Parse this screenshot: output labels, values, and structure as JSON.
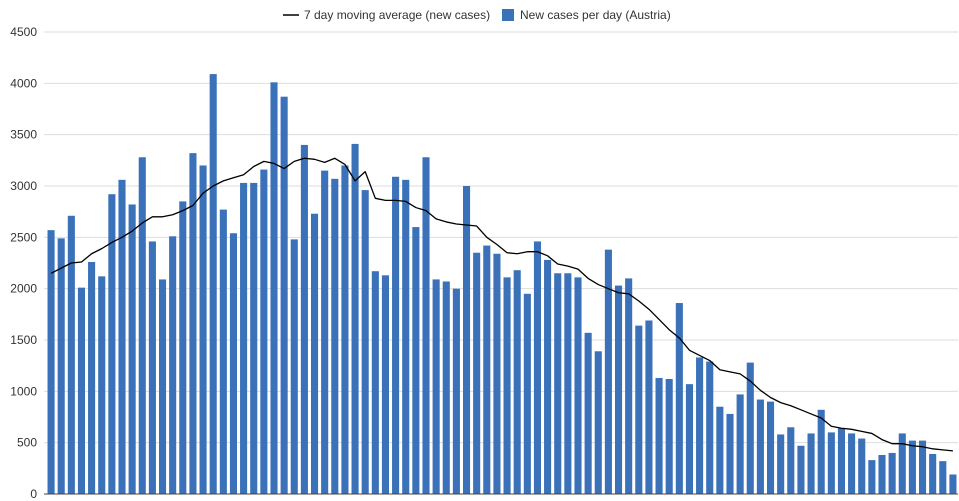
{
  "chart_data": {
    "type": "bar",
    "ylim": [
      0,
      4500
    ],
    "yticks": [
      "0",
      "500",
      "1000",
      "1500",
      "2000",
      "2500",
      "3000",
      "3500",
      "4000",
      "4500"
    ],
    "grid": true,
    "legend_position": "top-center",
    "series": [
      {
        "name": "New cases per day (Austria)",
        "type": "bar",
        "color": "#3a71b8",
        "values": [
          2570,
          2490,
          2710,
          2010,
          2260,
          2120,
          2920,
          3060,
          2820,
          3280,
          2460,
          2090,
          2510,
          2850,
          3320,
          3200,
          4090,
          2770,
          2540,
          3030,
          3030,
          3160,
          4010,
          3870,
          2480,
          3400,
          2730,
          3150,
          3070,
          3200,
          3410,
          2960,
          2170,
          2130,
          3090,
          3060,
          2600,
          3280,
          2090,
          2070,
          2000,
          3000,
          2350,
          2420,
          2340,
          2110,
          2180,
          1950,
          2460,
          2280,
          2150,
          2150,
          2110,
          1570,
          1390,
          2380,
          2030,
          2100,
          1640,
          1690,
          1130,
          1120,
          1860,
          1070,
          1330,
          1290,
          850,
          780,
          970,
          1280,
          920,
          900,
          580,
          650,
          470,
          590,
          820,
          600,
          640,
          590,
          540,
          330,
          380,
          400,
          590,
          520,
          520,
          390,
          320,
          190
        ]
      },
      {
        "name": "7 day moving average (new cases)",
        "type": "line",
        "color": "#000000",
        "values": [
          2150,
          2200,
          2250,
          2260,
          2340,
          2390,
          2450,
          2500,
          2560,
          2640,
          2700,
          2700,
          2720,
          2760,
          2810,
          2930,
          3000,
          3050,
          3080,
          3110,
          3190,
          3240,
          3220,
          3170,
          3240,
          3270,
          3260,
          3230,
          3270,
          3210,
          3050,
          3140,
          2880,
          2860,
          2860,
          2850,
          2790,
          2760,
          2680,
          2650,
          2630,
          2620,
          2610,
          2500,
          2430,
          2350,
          2340,
          2360,
          2360,
          2320,
          2240,
          2220,
          2190,
          2100,
          2040,
          2000,
          1960,
          1950,
          1880,
          1800,
          1700,
          1600,
          1520,
          1400,
          1350,
          1300,
          1210,
          1190,
          1170,
          1100,
          1010,
          940,
          890,
          860,
          820,
          780,
          740,
          660,
          640,
          630,
          610,
          590,
          530,
          490,
          490,
          470,
          460,
          440,
          430,
          420
        ]
      }
    ]
  }
}
